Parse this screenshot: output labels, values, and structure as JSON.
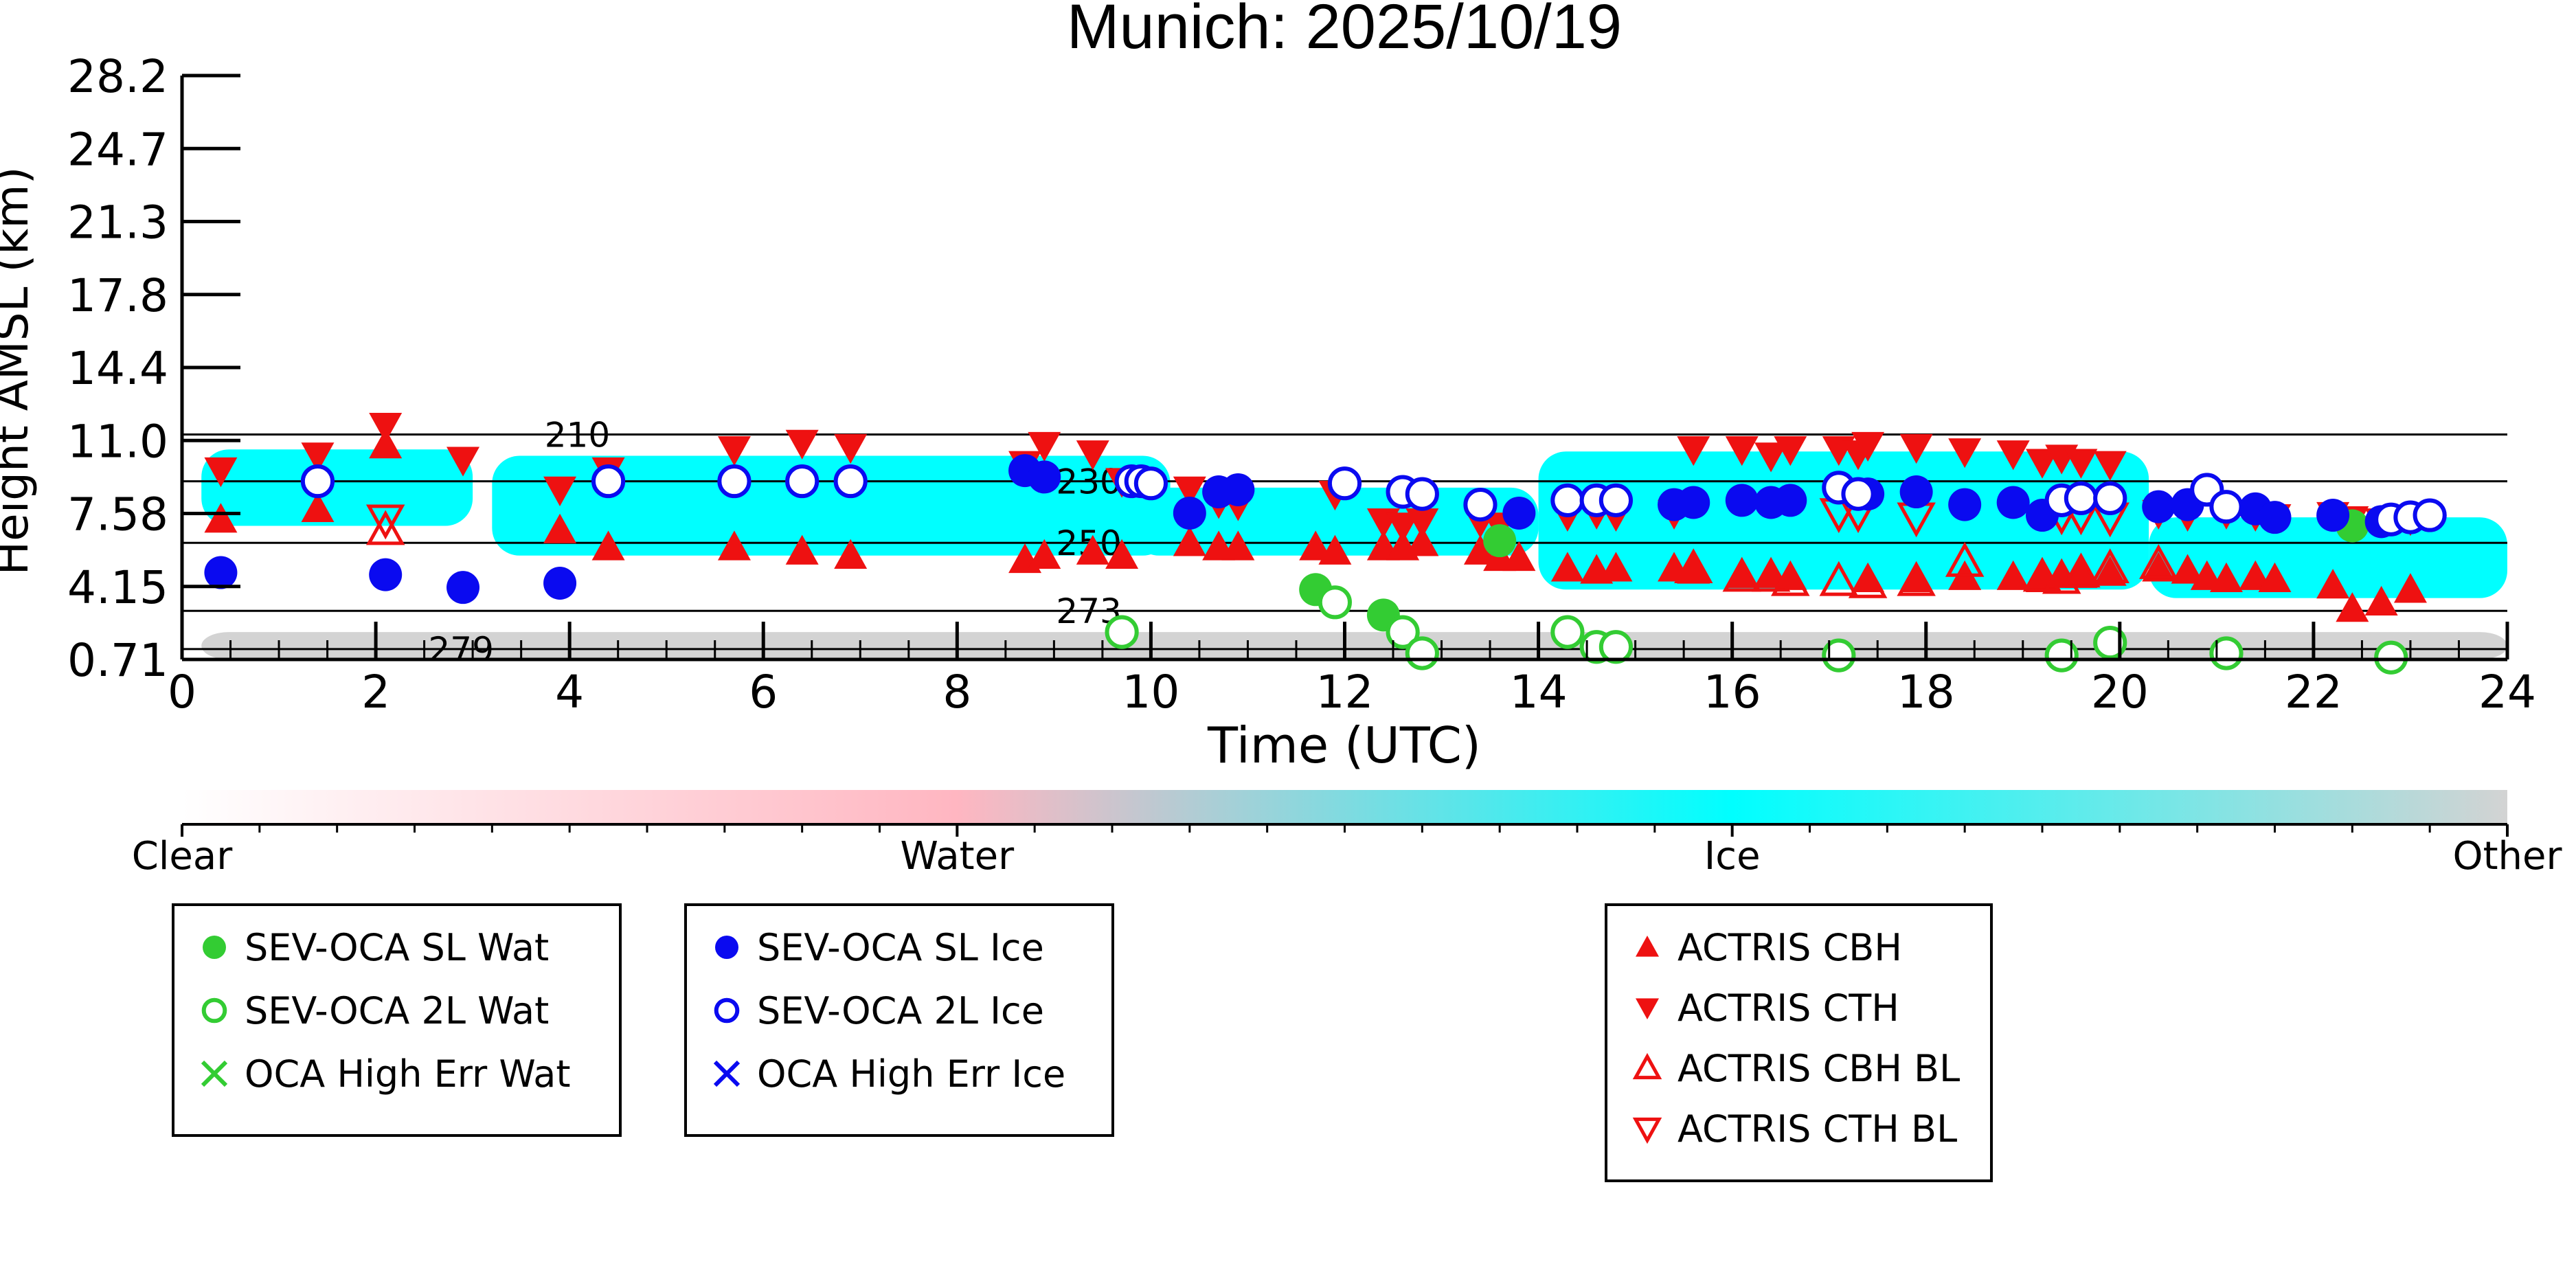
{
  "chart_data": {
    "type": "scatter",
    "title": "Munich: 2025/10/19",
    "xlabel": "Time (UTC)",
    "ylabel": "Height AMSL (km)",
    "xlim": [
      0,
      24
    ],
    "xticks": [
      "0",
      "2",
      "4",
      "6",
      "8",
      "10",
      "12",
      "14",
      "16",
      "18",
      "20",
      "22",
      "24"
    ],
    "yticks": [
      "0.71",
      "4.15",
      "7.58",
      "11.0",
      "14.4",
      "17.8",
      "21.3",
      "24.7",
      "28.2"
    ],
    "colorbar": {
      "labels": [
        "Clear",
        "Water",
        "Ice",
        "Other"
      ],
      "colors": [
        "#ffffff",
        "#ffb6c1",
        "#00ffff",
        "#d3d3d3"
      ]
    },
    "contours": [
      {
        "label": "210",
        "level_km": 11.3
      },
      {
        "label": "230",
        "level_km": 9.1
      },
      {
        "label": "250",
        "level_km": 6.2
      },
      {
        "label": "273",
        "level_km": 3.0
      },
      {
        "label": "279",
        "level_km": 1.2
      }
    ],
    "background_mask": [
      {
        "class": "Ice",
        "x": [
          0.2,
          3.0
        ],
        "y": [
          7.0,
          10.6
        ]
      },
      {
        "class": "Ice",
        "x": [
          3.2,
          10.2
        ],
        "y": [
          5.6,
          10.3
        ]
      },
      {
        "class": "Ice",
        "x": [
          9.8,
          14.0
        ],
        "y": [
          5.6,
          8.8
        ]
      },
      {
        "class": "Ice",
        "x": [
          14.0,
          20.3
        ],
        "y": [
          4.0,
          10.5
        ]
      },
      {
        "class": "Ice",
        "x": [
          20.3,
          24.0
        ],
        "y": [
          3.6,
          7.4
        ]
      },
      {
        "class": "Other",
        "x": [
          0.2,
          24.0
        ],
        "y": [
          0.71,
          2.0
        ]
      }
    ],
    "legend_groups": [
      [
        "SEV-OCA SL Wat",
        "SEV-OCA 2L Wat",
        "OCA High Err Wat"
      ],
      [
        "SEV-OCA SL Ice",
        "SEV-OCA 2L Ice",
        "OCA High Err Ice"
      ],
      [
        "ACTRIS CBH",
        "ACTRIS CTH",
        "ACTRIS CBH BL",
        "ACTRIS CTH BL"
      ]
    ],
    "series": [
      {
        "name": "SEV-OCA SL Wat",
        "color": "#33cc33",
        "marker": "filled-circle",
        "x": [
          11.7,
          12.4,
          13.6,
          22.4
        ],
        "y": [
          4.0,
          2.8,
          6.3,
          7.0
        ]
      },
      {
        "name": "SEV-OCA 2L Wat",
        "color": "#33cc33",
        "marker": "open-circle",
        "x": [
          9.7,
          11.9,
          12.6,
          12.8,
          14.3,
          14.6,
          14.8,
          17.1,
          19.4,
          19.9,
          21.1,
          22.8
        ],
        "y": [
          2.0,
          3.4,
          2.0,
          1.0,
          2.0,
          1.3,
          1.3,
          0.9,
          0.9,
          1.5,
          1.0,
          0.8
        ]
      },
      {
        "name": "OCA High Err Wat",
        "color": "#33cc33",
        "marker": "x",
        "x": [],
        "y": []
      },
      {
        "name": "SEV-OCA SL Ice",
        "color": "#0a0af0",
        "marker": "filled-circle",
        "x": [
          0.4,
          2.1,
          2.9,
          3.9,
          8.7,
          8.9,
          10.4,
          10.7,
          10.9,
          13.8,
          15.4,
          15.6,
          16.1,
          16.4,
          16.6,
          17.4,
          17.9,
          18.4,
          18.9,
          19.2,
          20.4,
          20.7,
          21.4,
          21.6,
          22.2,
          22.7
        ],
        "y": [
          4.8,
          4.7,
          4.1,
          4.3,
          9.6,
          9.3,
          7.6,
          8.6,
          8.7,
          7.6,
          8.0,
          8.1,
          8.2,
          8.1,
          8.2,
          8.5,
          8.6,
          8.0,
          8.1,
          7.5,
          7.9,
          8.0,
          7.8,
          7.4,
          7.5,
          7.2
        ]
      },
      {
        "name": "SEV-OCA 2L Ice",
        "color": "#0a0af0",
        "marker": "open-circle",
        "x": [
          1.4,
          4.4,
          5.7,
          6.4,
          6.9,
          9.8,
          9.9,
          10.0,
          12.0,
          12.6,
          12.8,
          13.4,
          14.3,
          14.6,
          14.8,
          17.1,
          17.3,
          19.4,
          19.6,
          19.9,
          20.9,
          21.1,
          22.8,
          23.0,
          23.2
        ],
        "y": [
          9.1,
          9.1,
          9.1,
          9.1,
          9.1,
          9.1,
          9.1,
          9.0,
          9.0,
          8.6,
          8.5,
          8.0,
          8.2,
          8.2,
          8.2,
          8.8,
          8.5,
          8.2,
          8.3,
          8.3,
          8.7,
          7.9,
          7.3,
          7.4,
          7.5
        ]
      },
      {
        "name": "OCA High Err Ice",
        "color": "#0a0af0",
        "marker": "x",
        "x": [],
        "y": []
      },
      {
        "name": "ACTRIS CBH",
        "color": "#ee1111",
        "marker": "triangle-up",
        "x": [
          0.4,
          1.4,
          2.1,
          3.9,
          4.4,
          5.7,
          6.4,
          6.9,
          8.7,
          8.9,
          9.4,
          9.7,
          10.4,
          10.7,
          10.9,
          11.7,
          11.9,
          12.4,
          12.6,
          12.8,
          13.4,
          13.6,
          13.8,
          14.3,
          14.6,
          14.8,
          15.4,
          15.6,
          16.1,
          16.4,
          16.6,
          17.4,
          17.9,
          18.4,
          18.9,
          19.2,
          19.4,
          19.6,
          19.9,
          20.4,
          20.7,
          20.9,
          21.1,
          21.4,
          21.6,
          22.2,
          22.4,
          22.7,
          23.0
        ],
        "y": [
          7.3,
          7.8,
          10.8,
          6.8,
          6.0,
          6.0,
          5.8,
          5.6,
          5.4,
          5.6,
          5.8,
          5.6,
          6.2,
          6.0,
          6.0,
          6.0,
          5.8,
          6.0,
          6.0,
          6.2,
          5.8,
          5.5,
          5.5,
          5.0,
          4.9,
          5.0,
          5.0,
          4.9,
          4.7,
          4.7,
          4.6,
          4.5,
          4.5,
          4.6,
          4.6,
          4.5,
          4.7,
          4.7,
          4.8,
          5.0,
          4.9,
          4.6,
          4.5,
          4.6,
          4.5,
          4.2,
          3.1,
          3.4,
          4.0
        ]
      },
      {
        "name": "ACTRIS CTH",
        "color": "#ee1111",
        "marker": "triangle-down",
        "x": [
          0.4,
          1.4,
          2.1,
          2.9,
          3.9,
          4.4,
          5.7,
          6.4,
          6.9,
          8.7,
          8.9,
          9.4,
          9.7,
          10.4,
          10.7,
          10.9,
          11.9,
          12.4,
          12.6,
          12.8,
          13.4,
          13.6,
          14.3,
          14.6,
          14.8,
          15.4,
          15.6,
          16.1,
          16.4,
          16.6,
          17.1,
          17.3,
          17.4,
          17.9,
          18.4,
          18.9,
          19.2,
          19.4,
          19.6,
          19.9,
          20.4,
          20.7,
          21.1,
          21.4,
          21.6,
          22.2,
          22.4,
          22.7,
          23.0
        ],
        "y": [
          9.6,
          10.3,
          11.7,
          10.1,
          8.7,
          9.6,
          10.6,
          10.9,
          10.7,
          9.9,
          10.8,
          10.4,
          9.1,
          8.7,
          8.1,
          8.0,
          8.5,
          7.2,
          7.0,
          7.2,
          7.2,
          7.0,
          7.5,
          7.6,
          7.5,
          7.6,
          10.6,
          10.6,
          10.3,
          10.6,
          10.6,
          10.4,
          10.8,
          10.7,
          10.5,
          10.4,
          10.0,
          10.2,
          10.0,
          9.9,
          7.6,
          7.5,
          7.6,
          7.5,
          7.4,
          7.5,
          7.3,
          7.2,
          7.3
        ]
      },
      {
        "name": "ACTRIS CBH BL",
        "color": "#ee1111",
        "marker": "open-triangle-up",
        "x": [
          2.1,
          15.6,
          16.1,
          16.4,
          16.6,
          17.1,
          17.4,
          17.9,
          18.4,
          19.2,
          19.4,
          19.6,
          19.9,
          20.4
        ],
        "y": [
          6.8,
          5.0,
          4.6,
          4.6,
          4.4,
          4.4,
          4.3,
          4.4,
          5.3,
          4.6,
          4.5,
          4.8,
          5.0,
          5.2
        ]
      },
      {
        "name": "ACTRIS CTH BL",
        "color": "#ee1111",
        "marker": "open-triangle-down",
        "x": [
          2.1,
          17.1,
          17.3,
          17.9,
          19.4,
          19.6,
          19.9
        ],
        "y": [
          7.3,
          7.6,
          7.6,
          7.4,
          7.5,
          7.5,
          7.4
        ]
      }
    ]
  }
}
